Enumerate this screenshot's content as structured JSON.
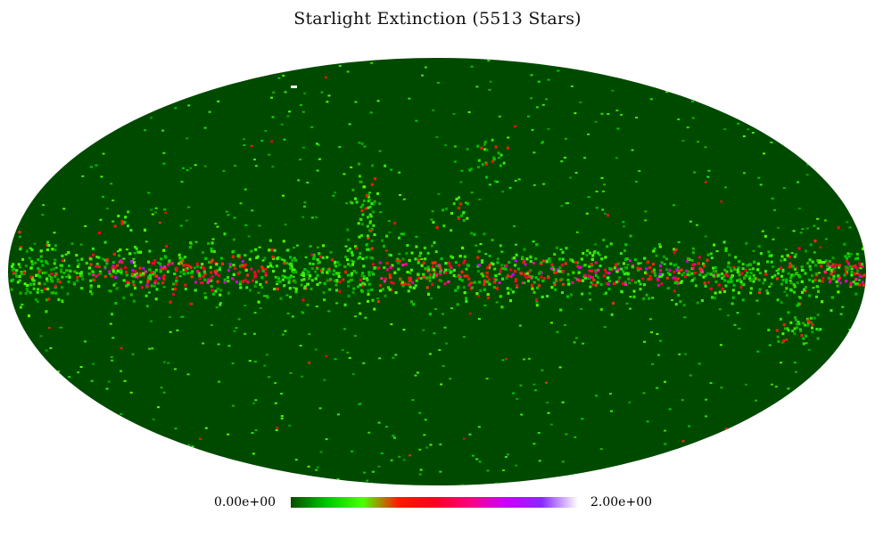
{
  "title": "Starlight Extinction (5513 Stars)",
  "colorbar": {
    "min_label": "0.00e+00",
    "max_label": "2.00e+00",
    "range": [
      0.0,
      2.0
    ],
    "stops": [
      "#0a4a00",
      "#00c800",
      "#4cff00",
      "#ff1a00",
      "#ff0020",
      "#ff0080",
      "#c800ff",
      "#8a2bff",
      "#ffffff"
    ]
  },
  "colors": {
    "background_map": "#004a00",
    "page_background": "#ffffff"
  },
  "map": {
    "projection": "mollweide",
    "star_count": 5513
  }
}
